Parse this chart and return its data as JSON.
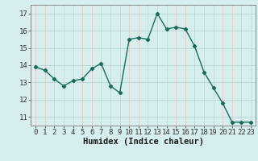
{
  "x": [
    0,
    1,
    2,
    3,
    4,
    5,
    6,
    7,
    8,
    9,
    10,
    11,
    12,
    13,
    14,
    15,
    16,
    17,
    18,
    19,
    20,
    21,
    22,
    23
  ],
  "y": [
    13.9,
    13.7,
    13.2,
    12.8,
    13.1,
    13.2,
    13.8,
    14.1,
    12.8,
    12.4,
    15.5,
    15.6,
    15.5,
    17.0,
    16.1,
    16.2,
    16.1,
    15.1,
    13.6,
    12.7,
    11.8,
    10.7,
    10.7,
    10.7
  ],
  "line_color": "#1a6b5a",
  "marker": "D",
  "marker_size": 2.2,
  "bg_color": "#d6eeee",
  "grid_teal_color": "#b8d8d8",
  "grid_red_color": "#e8c8c8",
  "xlabel": "Humidex (Indice chaleur)",
  "xlabel_fontsize": 7.5,
  "xlim": [
    -0.5,
    23.5
  ],
  "ylim": [
    10.5,
    17.5
  ],
  "yticks": [
    11,
    12,
    13,
    14,
    15,
    16,
    17
  ],
  "xticks": [
    0,
    1,
    2,
    3,
    4,
    5,
    6,
    7,
    8,
    9,
    10,
    11,
    12,
    13,
    14,
    15,
    16,
    17,
    18,
    19,
    20,
    21,
    22,
    23
  ],
  "tick_fontsize": 6.5,
  "line_width": 1.0
}
